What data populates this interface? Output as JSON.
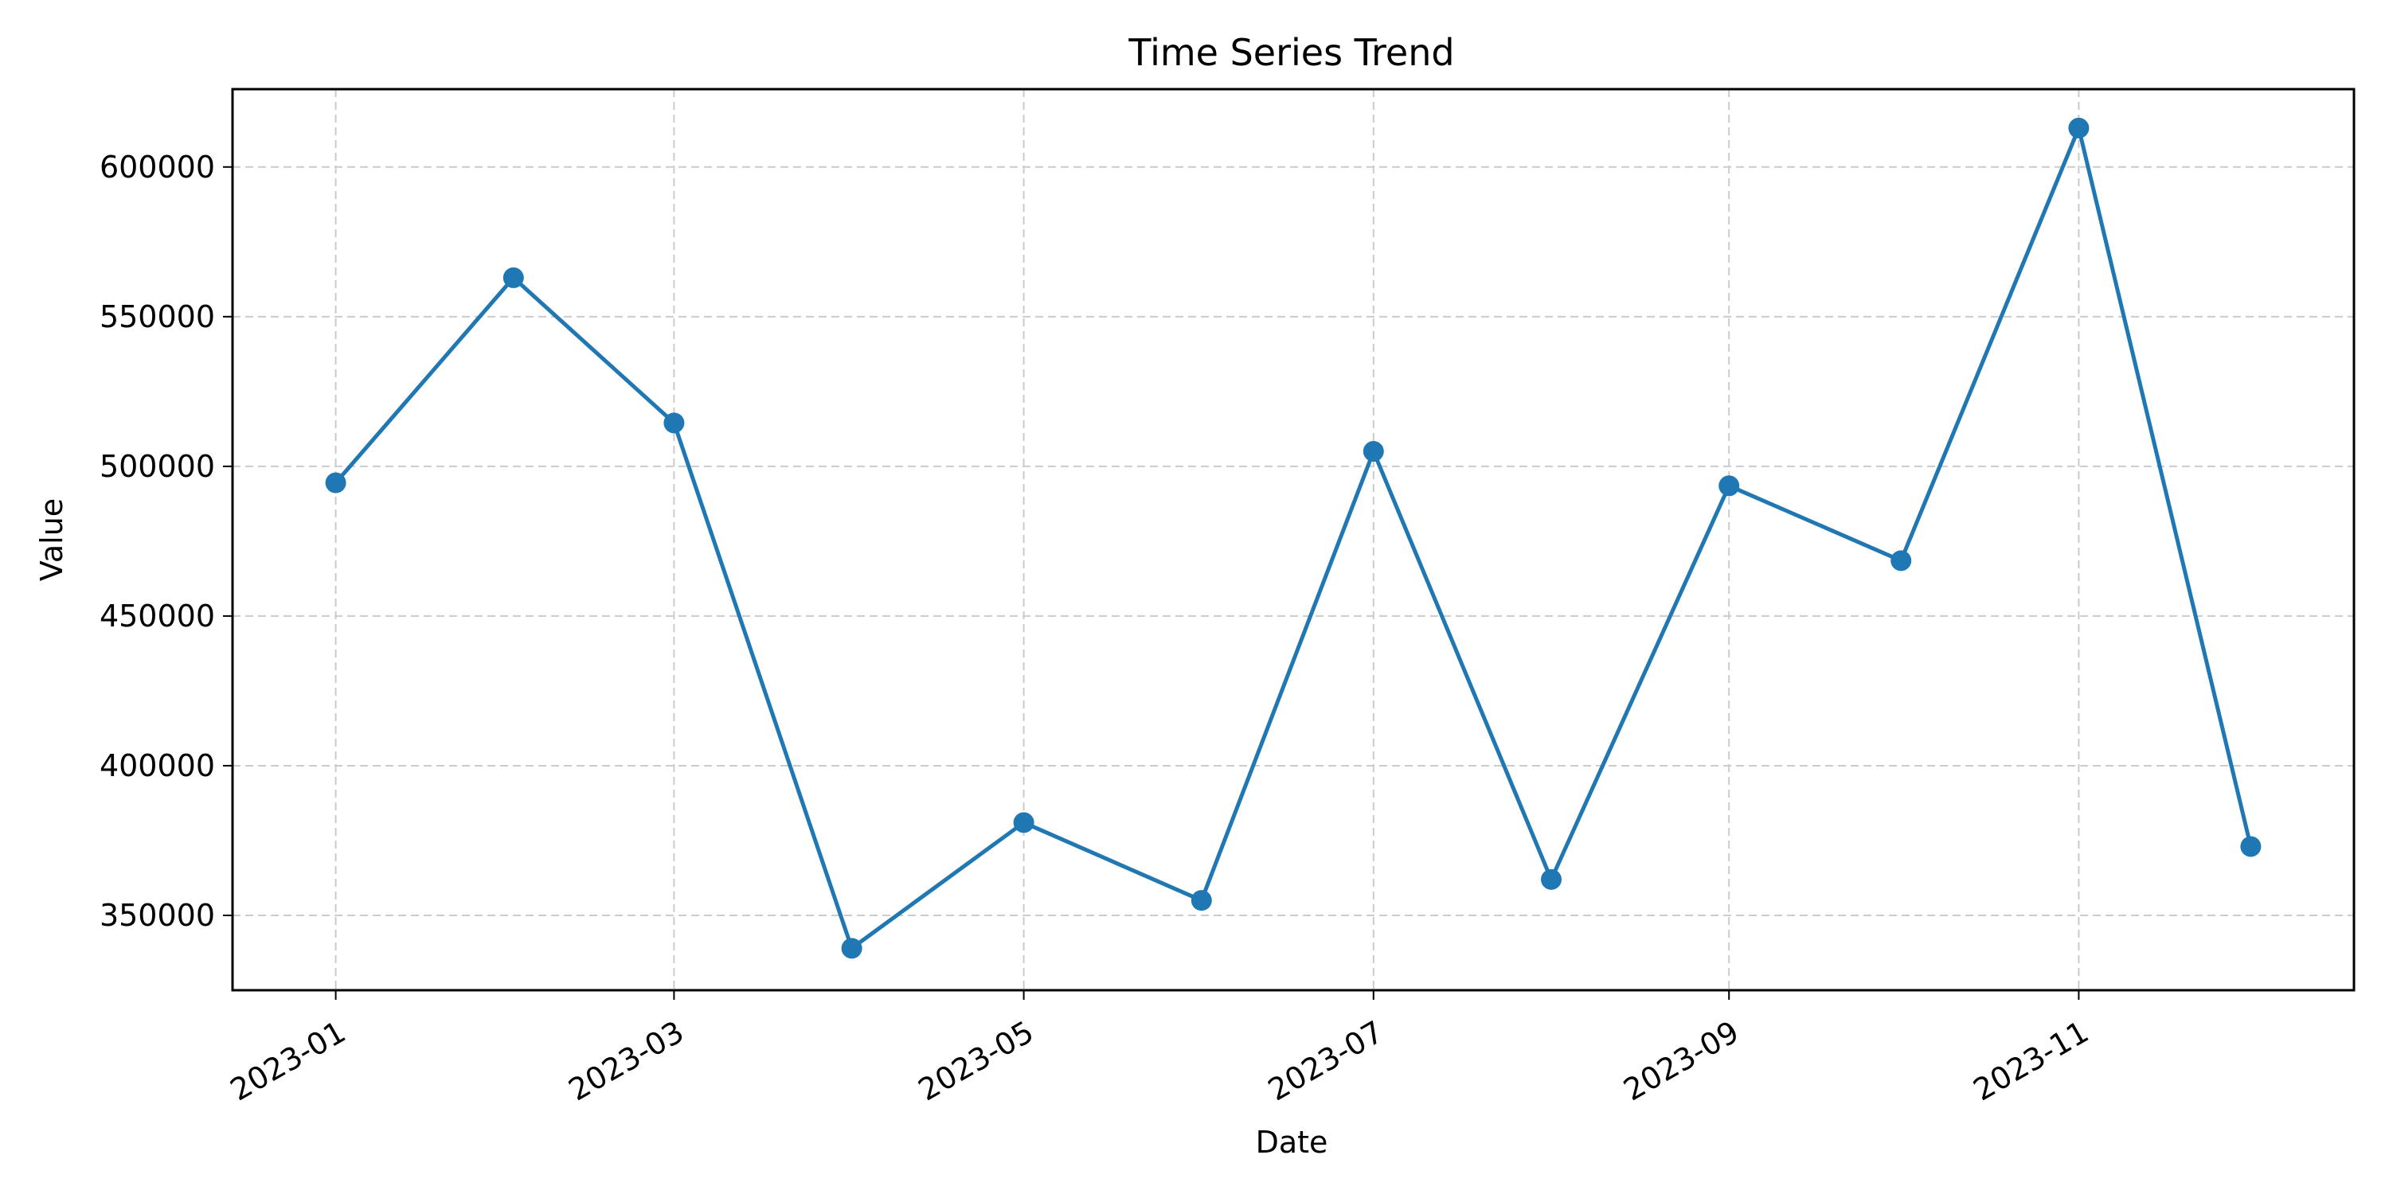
{
  "chart_data": {
    "type": "line",
    "title": "Time Series Trend",
    "xlabel": "Date",
    "ylabel": "Value",
    "x": [
      "2023-01-01",
      "2023-02-01",
      "2023-03-01",
      "2023-04-01",
      "2023-05-01",
      "2023-06-01",
      "2023-07-01",
      "2023-08-01",
      "2023-09-01",
      "2023-10-01",
      "2023-11-01",
      "2023-12-01"
    ],
    "values": [
      494500,
      563000,
      514500,
      339000,
      381000,
      355000,
      505000,
      362000,
      493500,
      468500,
      613000,
      373000
    ],
    "x_ticks": [
      "2023-01",
      "2023-03",
      "2023-05",
      "2023-07",
      "2023-09",
      "2023-11"
    ],
    "y_ticks": [
      350000,
      400000,
      450000,
      500000,
      550000,
      600000
    ],
    "ylim": [
      325000,
      626000
    ],
    "xlim": [
      "2022-12-14",
      "2023-12-19"
    ],
    "grid": true,
    "line_color": "#1f77b4",
    "marker": "circle"
  }
}
